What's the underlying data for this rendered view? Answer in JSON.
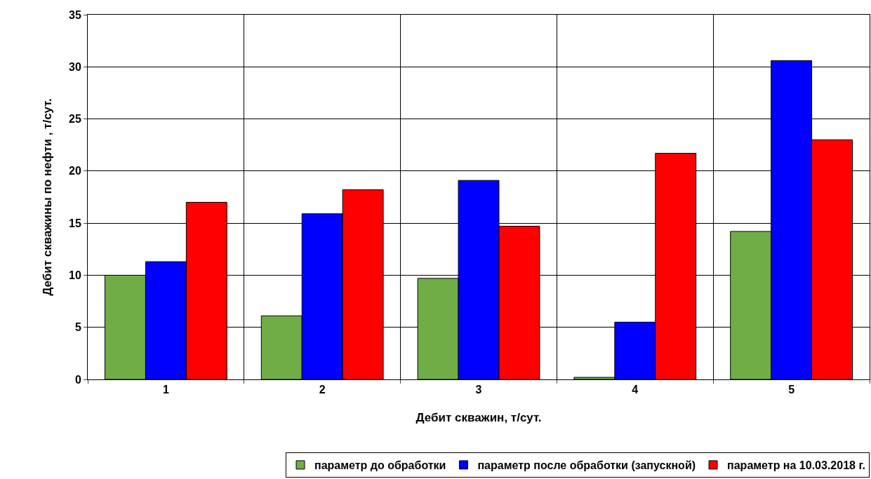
{
  "chart_data": {
    "type": "bar",
    "xlabel": "Дебит скважин, т/сут.",
    "ylabel": "Дебит скважины по нефти , т/сут.",
    "categories": [
      "1",
      "2",
      "3",
      "4",
      "5"
    ],
    "series": [
      {
        "name": "параметр до обработки",
        "color": "#70ad47",
        "values": [
          10,
          6.1,
          9.7,
          0.2,
          14.2
        ]
      },
      {
        "name": "параметр после обработки (запускной)",
        "color": "#0000ff",
        "values": [
          11.3,
          15.9,
          19.1,
          5.5,
          30.6
        ]
      },
      {
        "name": "параметр на 10.03.2018 г.",
        "color": "#ff0000",
        "values": [
          17,
          18.2,
          14.7,
          21.7,
          23
        ]
      }
    ],
    "ylim": [
      0,
      35
    ],
    "yticks": [
      0,
      5,
      10,
      15,
      20,
      25,
      30,
      35
    ],
    "grid": true,
    "legend": "bottom"
  }
}
